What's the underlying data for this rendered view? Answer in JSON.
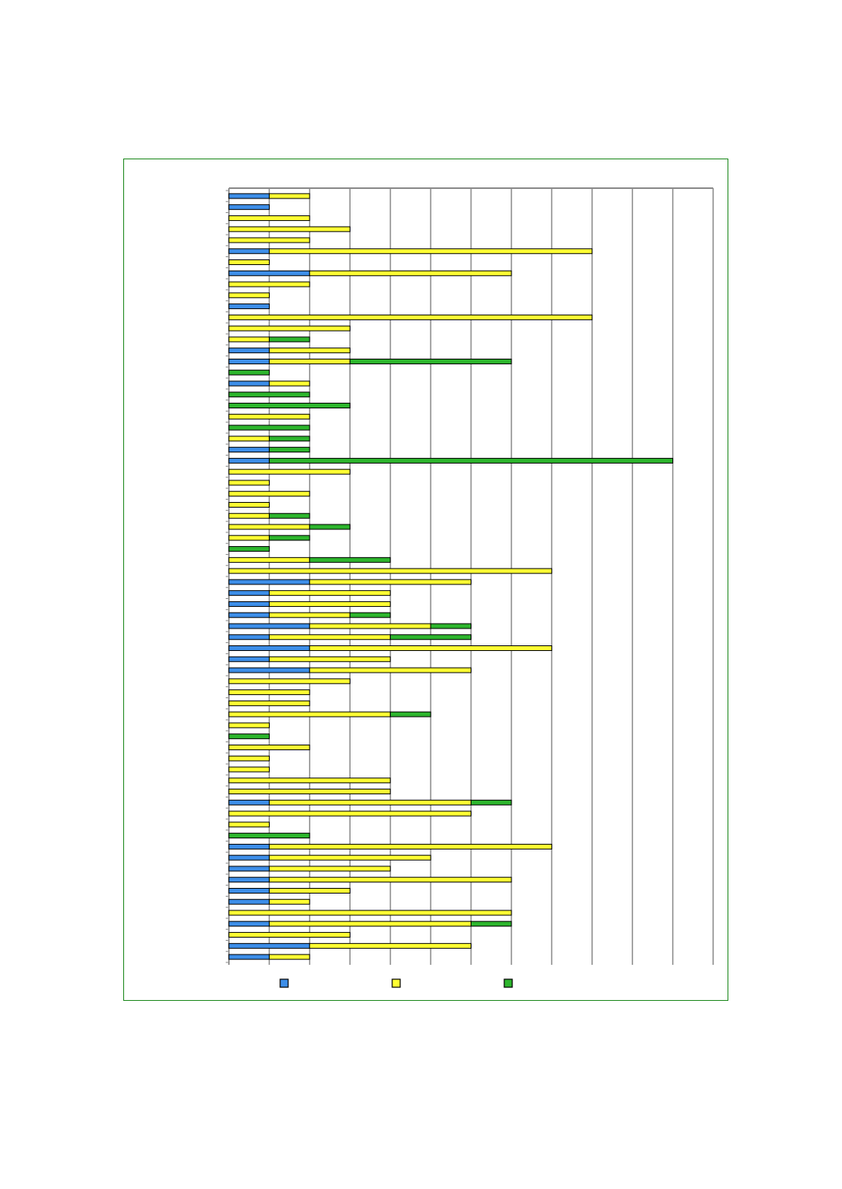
{
  "chart_data": {
    "type": "bar",
    "orientation": "horizontal",
    "stacked": true,
    "grid": true,
    "legend": "bottom",
    "xlim": [
      0,
      12
    ],
    "xtick_step": 1,
    "series": [
      {
        "color": "#3d8ee8",
        "values": [
          1,
          1,
          0,
          0,
          0,
          1,
          0,
          2,
          0,
          0,
          1,
          0,
          0,
          0,
          1,
          1,
          0,
          1,
          0,
          0,
          0,
          0,
          0,
          1,
          1,
          0,
          0,
          0,
          0,
          0,
          0,
          0,
          0,
          0,
          0,
          2,
          1,
          1,
          1,
          2,
          1,
          2,
          1,
          2,
          0,
          0,
          0,
          0,
          0,
          0,
          0,
          0,
          0,
          0,
          0,
          1,
          0,
          0,
          0,
          1,
          1,
          1,
          1,
          1,
          1,
          0,
          1,
          0,
          2,
          1
        ]
      },
      {
        "color": "#ffff33",
        "values": [
          1,
          0,
          2,
          3,
          2,
          8,
          1,
          5,
          2,
          1,
          0,
          9,
          3,
          1,
          2,
          2,
          0,
          1,
          0,
          0,
          2,
          0,
          1,
          0,
          0,
          3,
          1,
          2,
          1,
          1,
          2,
          1,
          0,
          2,
          8,
          4,
          3,
          3,
          2,
          3,
          3,
          6,
          3,
          4,
          3,
          2,
          2,
          4,
          1,
          0,
          2,
          1,
          1,
          4,
          4,
          5,
          6,
          1,
          0,
          7,
          4,
          3,
          6,
          2,
          1,
          7,
          5,
          3,
          4,
          1
        ]
      },
      {
        "color": "#2db52d",
        "values": [
          0,
          0,
          0,
          0,
          0,
          0,
          0,
          0,
          0,
          0,
          0,
          0,
          0,
          1,
          0,
          4,
          1,
          0,
          2,
          3,
          0,
          2,
          1,
          1,
          10,
          0,
          0,
          0,
          0,
          1,
          1,
          1,
          1,
          2,
          0,
          0,
          0,
          0,
          1,
          1,
          2,
          0,
          0,
          0,
          0,
          0,
          0,
          1,
          0,
          1,
          0,
          0,
          0,
          0,
          0,
          1,
          0,
          0,
          2,
          0,
          0,
          0,
          0,
          0,
          0,
          0,
          1,
          0,
          0,
          0
        ]
      }
    ]
  }
}
